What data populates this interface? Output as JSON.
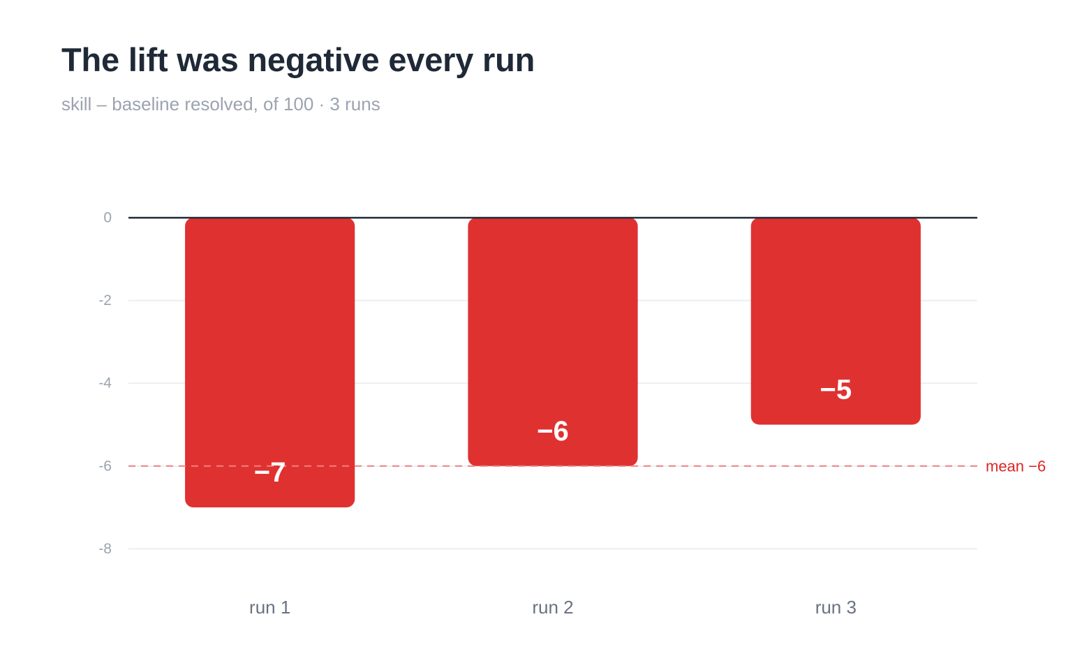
{
  "chart_data": {
    "type": "bar",
    "title": "The lift was negative every run",
    "subtitle": "skill – baseline resolved, of 100 · 3 runs",
    "categories": [
      "run 1",
      "run 2",
      "run 3"
    ],
    "values": [
      -7,
      -6,
      -5
    ],
    "value_labels": [
      "−7",
      "−6",
      "−5"
    ],
    "xlabel": "",
    "ylabel": "",
    "ylim": [
      -8.5,
      0
    ],
    "yticks": [
      0,
      -2,
      -4,
      -6,
      -8
    ],
    "ytick_labels": [
      "0",
      "-2",
      "-4",
      "-6",
      "-8"
    ],
    "grid": true,
    "mean": {
      "value": -6,
      "label": "mean −6"
    },
    "colors": {
      "bar": "#e03131",
      "mean_line": "#f08080",
      "mean_text": "#dc2626",
      "zero_line": "#1f2937",
      "grid": "#eceef0"
    }
  }
}
